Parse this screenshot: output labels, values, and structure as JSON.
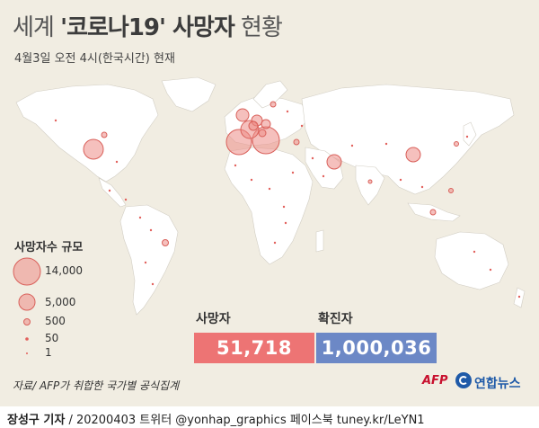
{
  "title": {
    "prefix": "세계 ",
    "main": "'코로나19' 사망자",
    "suffix": " 현황"
  },
  "subtitle": "4월3일 오전 4시(한국시간) 현재",
  "legend": {
    "title": "사망자수 규모",
    "items": [
      "14,000",
      "5,000",
      "500",
      "50",
      "1"
    ]
  },
  "stats": {
    "deaths_label": "사망자",
    "deaths_value": "51,718",
    "confirmed_label": "확진자",
    "confirmed_value": "1,000,036"
  },
  "source": "자료/ AFP가 취합한 국가별 공식집계",
  "logo": {
    "afp": "AFP",
    "yna": "연합뉴스"
  },
  "footer": {
    "author": "장성구 기자",
    "rest": " / 20200403  트위터 @yonhap_graphics  페이스북 tuney.kr/LeYN1"
  },
  "colors": {
    "background": "#f1ede2",
    "deaths": "#ed7474",
    "confirmed": "#6c88c6",
    "bubble": "#ec8d86"
  }
}
